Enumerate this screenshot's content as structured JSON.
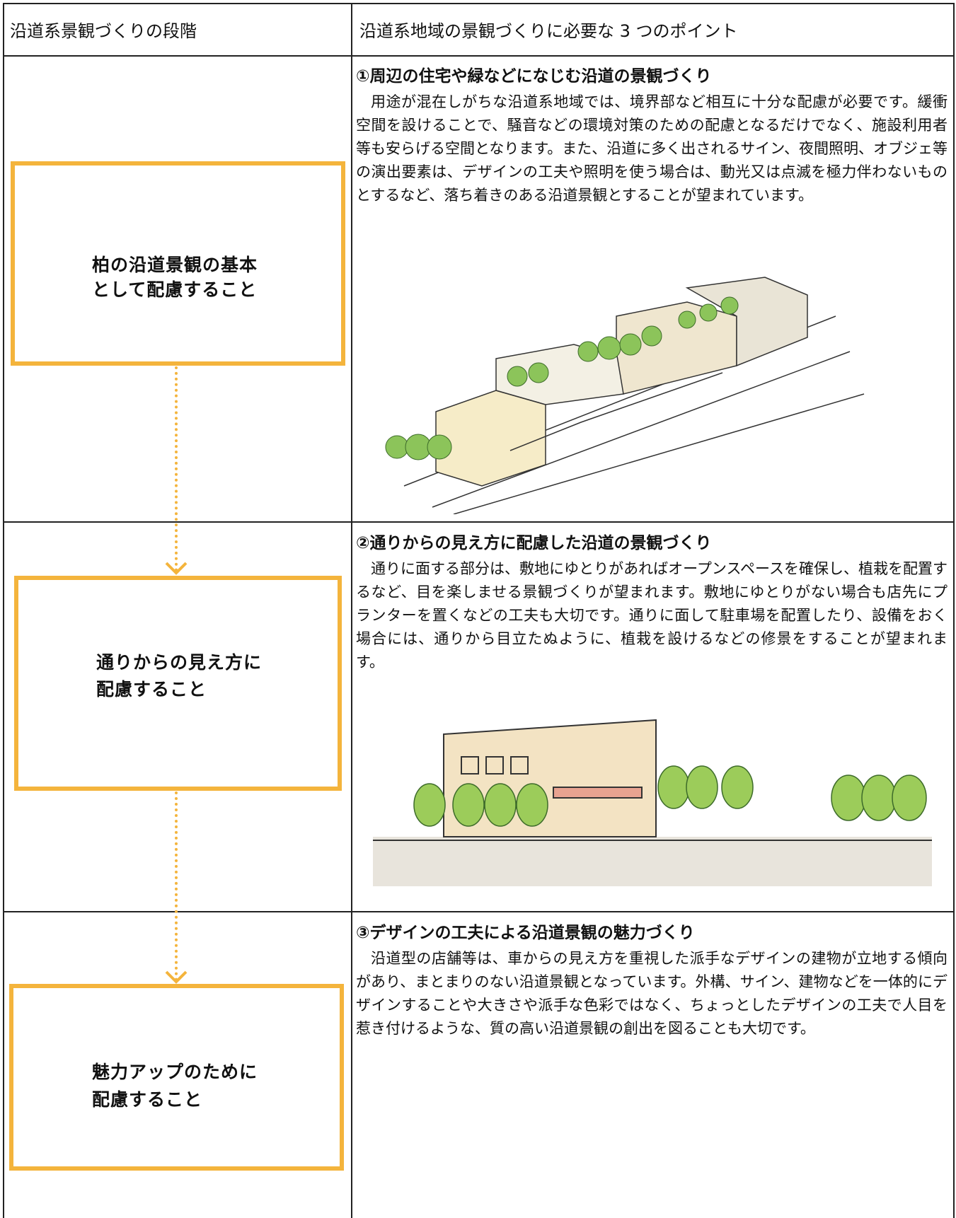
{
  "header": {
    "left": "沿道系景観づくりの段階",
    "right": "沿道系地域の景観づくりに必要な 3 つのポイント"
  },
  "rows": [
    {
      "stage_lines": [
        "柏の沿道景観の基本",
        "として配慮すること"
      ],
      "point_title": "①周辺の住宅や緑などになじむ沿道の景観づくり",
      "text": "用途が混在しがちな沿道系地域では、境界部など相互に十分な配慮が必要です。緩衝空間を設けることで、騒音などの環境対策のための配慮となるだけでなく、施設利用者等も安らげる空間となります。また、沿道に多く出されるサイン、夜間照明、オブジェ等の演出要素は、デザインの工夫や照明を使う場合は、動光又は点滅を極力伴わないものとするなど、落ち着きのある沿道景観とすることが望まれています。"
    },
    {
      "stage_lines": [
        "通りからの見え方に",
        "配慮すること"
      ],
      "point_title": "②通りからの見え方に配慮した沿道の景観づくり",
      "text": "通りに面する部分は、敷地にゆとりがあればオープンスペースを確保し、植栽を配置するなど、目を楽しませる景観づくりが望まれます。敷地にゆとりがない場合も店先にプランターを置くなどの工夫も大切です。通りに面して駐車場を配置したり、設備をおく場合には、通りから目立たぬように、植栽を設けるなどの修景をすることが望まれます。"
    },
    {
      "stage_lines": [
        "魅力アップのために",
        "配慮すること"
      ],
      "point_title": "③デザインの工夫による沿道景観の魅力づくり",
      "text": "沿道型の店舗等は、車からの見え方を重視した派手なデザインの建物が立地する傾向があり、まとまりのない沿道景観となっています。外構、サイン、建物などを一体的にデザインすることや大きさや派手な色彩ではなく、ちょっとしたデザインの工夫で人目を惹き付けるような、質の高い沿道景観の創出を図ることも大切です。"
    }
  ]
}
